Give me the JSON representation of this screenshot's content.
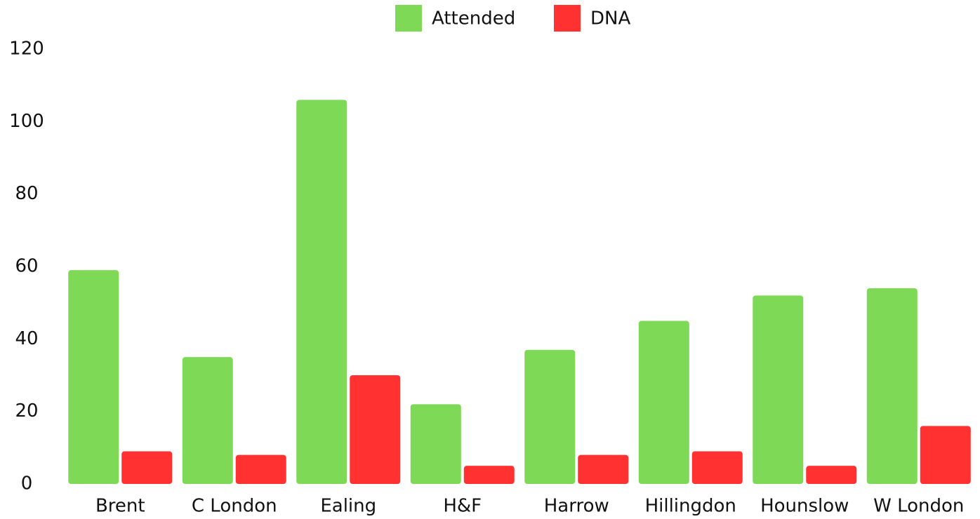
{
  "chart_data": {
    "type": "bar",
    "categories": [
      "Brent",
      "C London",
      "Ealing",
      "H&F",
      "Harrow",
      "Hillingdon",
      "Hounslow",
      "W London"
    ],
    "series": [
      {
        "name": "Attended",
        "color": "#7ED957",
        "values": [
          59,
          35,
          106,
          22,
          37,
          45,
          52,
          54
        ]
      },
      {
        "name": "DNA",
        "color": "#FF3131",
        "values": [
          9,
          8,
          30,
          5,
          8,
          9,
          5,
          16
        ]
      }
    ],
    "ylim": [
      0,
      120
    ],
    "yticks": [
      0,
      20,
      40,
      60,
      80,
      100,
      120
    ],
    "grid": false,
    "legend_position": "top-center",
    "title": "",
    "xlabel": "",
    "ylabel": ""
  }
}
